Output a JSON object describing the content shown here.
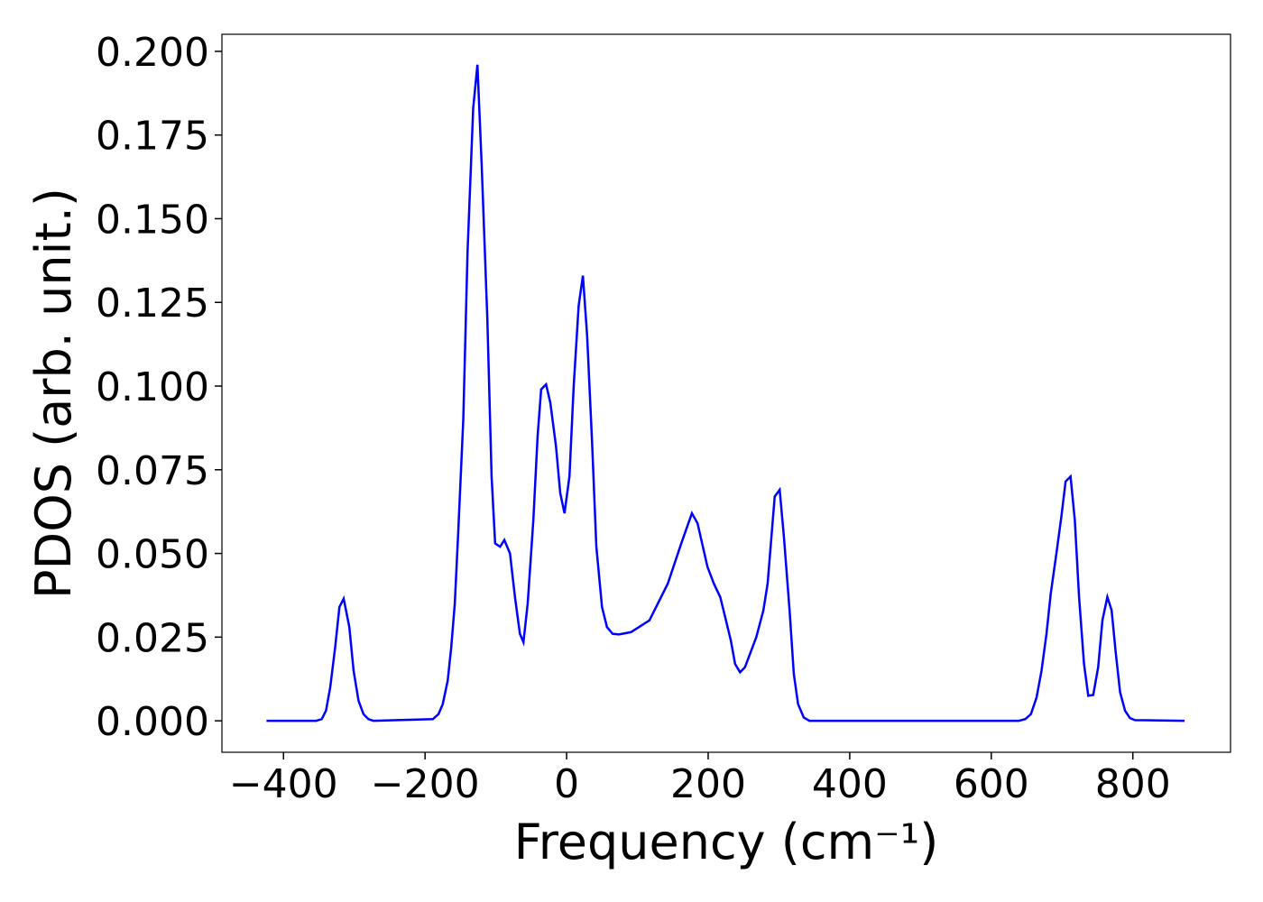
{
  "chart_data": {
    "type": "line",
    "xlabel": "Frequency (cm⁻¹)",
    "ylabel": "PDOS (arb. unit.)",
    "xlim": [
      -487,
      938
    ],
    "ylim": [
      -0.0094,
      0.2051
    ],
    "xticks": [
      {
        "value": -400,
        "label": "−400"
      },
      {
        "value": -200,
        "label": "−200"
      },
      0,
      200,
      400,
      600,
      800
    ],
    "yticks": [
      {
        "value": 0,
        "label": "0.000"
      },
      {
        "value": 0.025,
        "label": "0.025"
      },
      {
        "value": 0.05,
        "label": "0.050"
      },
      {
        "value": 0.075,
        "label": "0.075"
      },
      {
        "value": 0.1,
        "label": "0.100"
      },
      {
        "value": 0.125,
        "label": "0.125"
      },
      {
        "value": 0.15,
        "label": "0.150"
      },
      {
        "value": 0.175,
        "label": "0.175"
      },
      {
        "value": 0.2,
        "label": "0.200"
      }
    ],
    "grid": false,
    "x": [
      -424,
      -354,
      -346,
      -340,
      -334,
      -327,
      -321,
      -315,
      -307,
      -301,
      -294,
      -287,
      -280,
      -273,
      -189,
      -181,
      -175,
      -168,
      -163,
      -158,
      -153,
      -146,
      -140,
      -132,
      -126,
      -120,
      -112,
      -106,
      -101,
      -94,
      -88,
      -80,
      -73,
      -66,
      -61,
      -55,
      -47,
      -41,
      -36,
      -29,
      -23,
      -15,
      -9,
      -3,
      4,
      10,
      17,
      23,
      29,
      36,
      42,
      50,
      57,
      65,
      74,
      91,
      117,
      143,
      162,
      177,
      185,
      199,
      208,
      217,
      224,
      232,
      238,
      245,
      252,
      268,
      278,
      284,
      294,
      301,
      307,
      315,
      321,
      327,
      335,
      343,
      639,
      648,
      656,
      664,
      671,
      678,
      684,
      692,
      699,
      705,
      712,
      718,
      724,
      731,
      737,
      744,
      751,
      757,
      764,
      770,
      776,
      782,
      789,
      796,
      803,
      873
    ],
    "series": [
      {
        "name": "PDOS",
        "color": "#0000ff",
        "values": [
          0,
          0,
          0.0005,
          0.003,
          0.01,
          0.022,
          0.034,
          0.0365,
          0.028,
          0.015,
          0.006,
          0.002,
          0.0005,
          0,
          0.0005,
          0.002,
          0.005,
          0.012,
          0.022,
          0.035,
          0.057,
          0.09,
          0.14,
          0.183,
          0.196,
          0.166,
          0.12,
          0.073,
          0.053,
          0.052,
          0.054,
          0.05,
          0.037,
          0.026,
          0.0235,
          0.035,
          0.06,
          0.085,
          0.099,
          0.1005,
          0.095,
          0.082,
          0.068,
          0.062,
          0.073,
          0.1,
          0.124,
          0.133,
          0.115,
          0.083,
          0.052,
          0.034,
          0.028,
          0.026,
          0.0258,
          0.0265,
          0.03,
          0.041,
          0.053,
          0.062,
          0.059,
          0.046,
          0.041,
          0.037,
          0.031,
          0.024,
          0.017,
          0.0145,
          0.016,
          0.025,
          0.033,
          0.041,
          0.067,
          0.069,
          0.055,
          0.033,
          0.014,
          0.005,
          0.001,
          0,
          0,
          0.0005,
          0.002,
          0.007,
          0.015,
          0.026,
          0.038,
          0.05,
          0.061,
          0.0715,
          0.073,
          0.06,
          0.037,
          0.017,
          0.0075,
          0.0077,
          0.016,
          0.03,
          0.037,
          0.033,
          0.02,
          0.0085,
          0.003,
          0.0008,
          0.0002,
          0
        ]
      }
    ]
  }
}
